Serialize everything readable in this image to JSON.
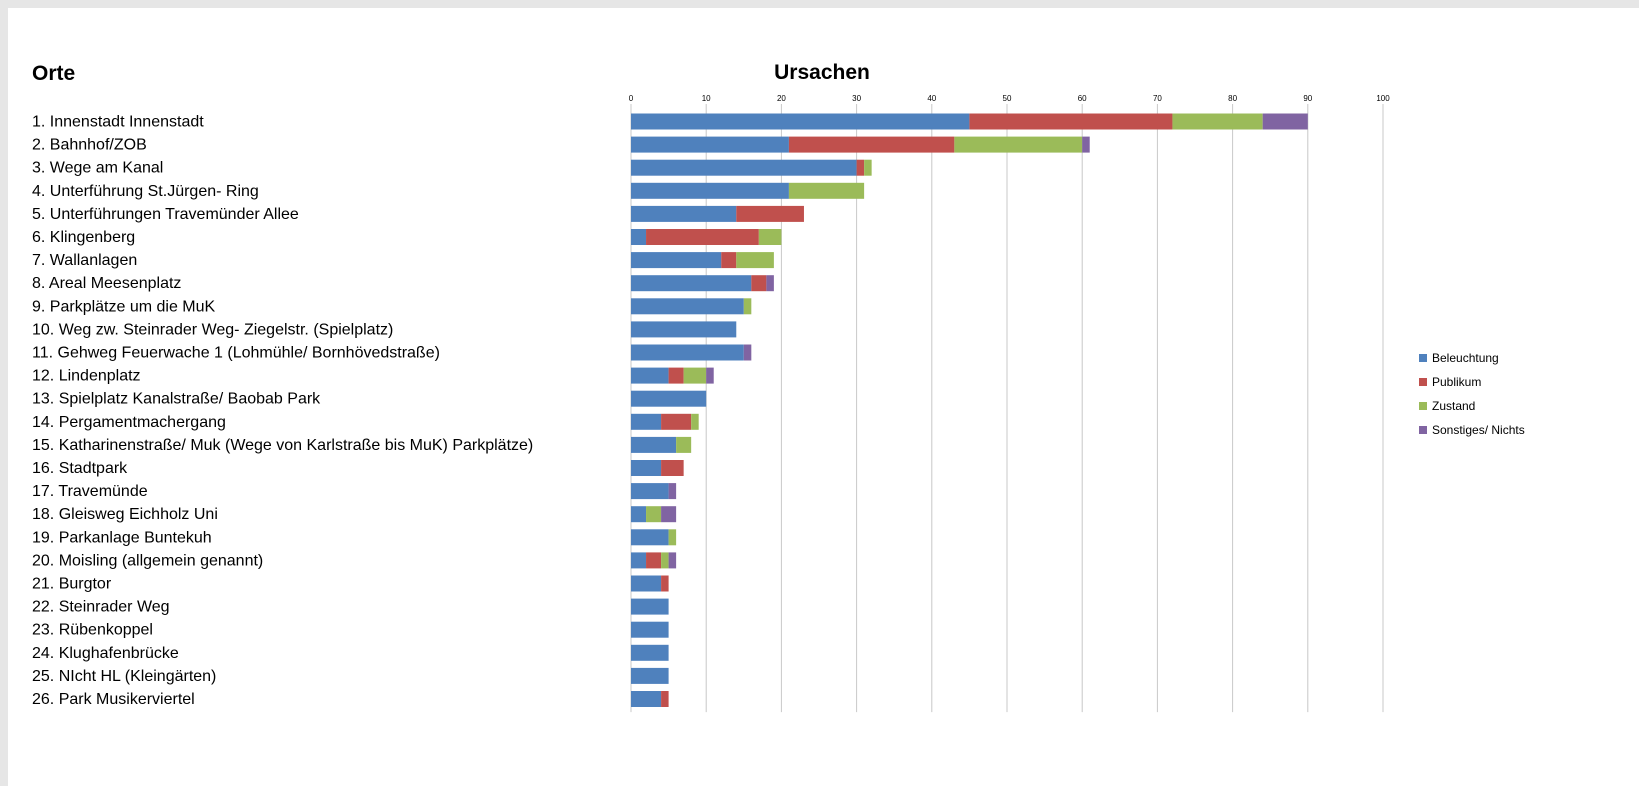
{
  "chart_data": {
    "type": "bar",
    "orientation": "horizontal",
    "stacked": true,
    "left_heading": "Orte",
    "title": "Ursachen",
    "xlim": [
      0,
      100
    ],
    "x_ticks": [
      0,
      10,
      20,
      30,
      40,
      50,
      60,
      70,
      80,
      90,
      100
    ],
    "grid": true,
    "legend_position": "right",
    "categories": [
      "1. Innenstadt Innenstadt",
      "2. Bahnhof/ZOB",
      "3. Wege am Kanal",
      "4. Unterführung St.Jürgen- Ring",
      "5. Unterführungen Travemünder Allee",
      "6. Klingenberg",
      "7. Wallanlagen",
      "8. Areal Meesenplatz",
      "9. Parkplätze um die MuK",
      "10. Weg zw. Steinrader Weg- Ziegelstr. (Spielplatz)",
      "11. Gehweg Feuerwache 1 (Lohmühle/ Bornhövedstraße)",
      "12. Lindenplatz",
      "13. Spielplatz Kanalstraße/ Baobab Park",
      "14. Pergamentmachergang",
      "15. Katharinenstraße/ Muk (Wege von Karlstraße bis MuK) Parkplätze)",
      "16. Stadtpark",
      "17. Travemünde",
      "18. Gleisweg Eichholz Uni",
      "19. Parkanlage Buntekuh",
      "20. Moisling (allgemein genannt)",
      "21. Burgtor",
      "22. Steinrader Weg",
      "23. Rübenkoppel",
      "24. Klughafenbrücke",
      "25. NIcht HL (Kleingärten)",
      "26. Park Musikerviertel"
    ],
    "series": [
      {
        "name": "Beleuchtung",
        "color": "#4f81bd",
        "values": [
          45,
          21,
          30,
          21,
          14,
          2,
          12,
          16,
          15,
          14,
          15,
          5,
          10,
          4,
          6,
          4,
          5,
          2,
          5,
          2,
          4,
          5,
          5,
          5,
          5,
          4
        ]
      },
      {
        "name": "Publikum",
        "color": "#c0504d",
        "values": [
          27,
          22,
          1,
          0,
          9,
          15,
          2,
          2,
          0,
          0,
          0,
          2,
          0,
          4,
          0,
          3,
          0,
          0,
          0,
          2,
          1,
          0,
          0,
          0,
          0,
          1
        ]
      },
      {
        "name": "Zustand",
        "color": "#9bbb59",
        "values": [
          12,
          17,
          1,
          10,
          0,
          3,
          5,
          0,
          1,
          0,
          0,
          3,
          0,
          1,
          2,
          0,
          0,
          2,
          1,
          1,
          0,
          0,
          0,
          0,
          0,
          0
        ]
      },
      {
        "name": "Sonstiges/ Nichts",
        "color": "#8064a2",
        "values": [
          6,
          1,
          0,
          0,
          0,
          0,
          0,
          1,
          0,
          0,
          1,
          1,
          0,
          0,
          0,
          0,
          1,
          2,
          0,
          1,
          0,
          0,
          0,
          0,
          0,
          0
        ]
      }
    ]
  }
}
